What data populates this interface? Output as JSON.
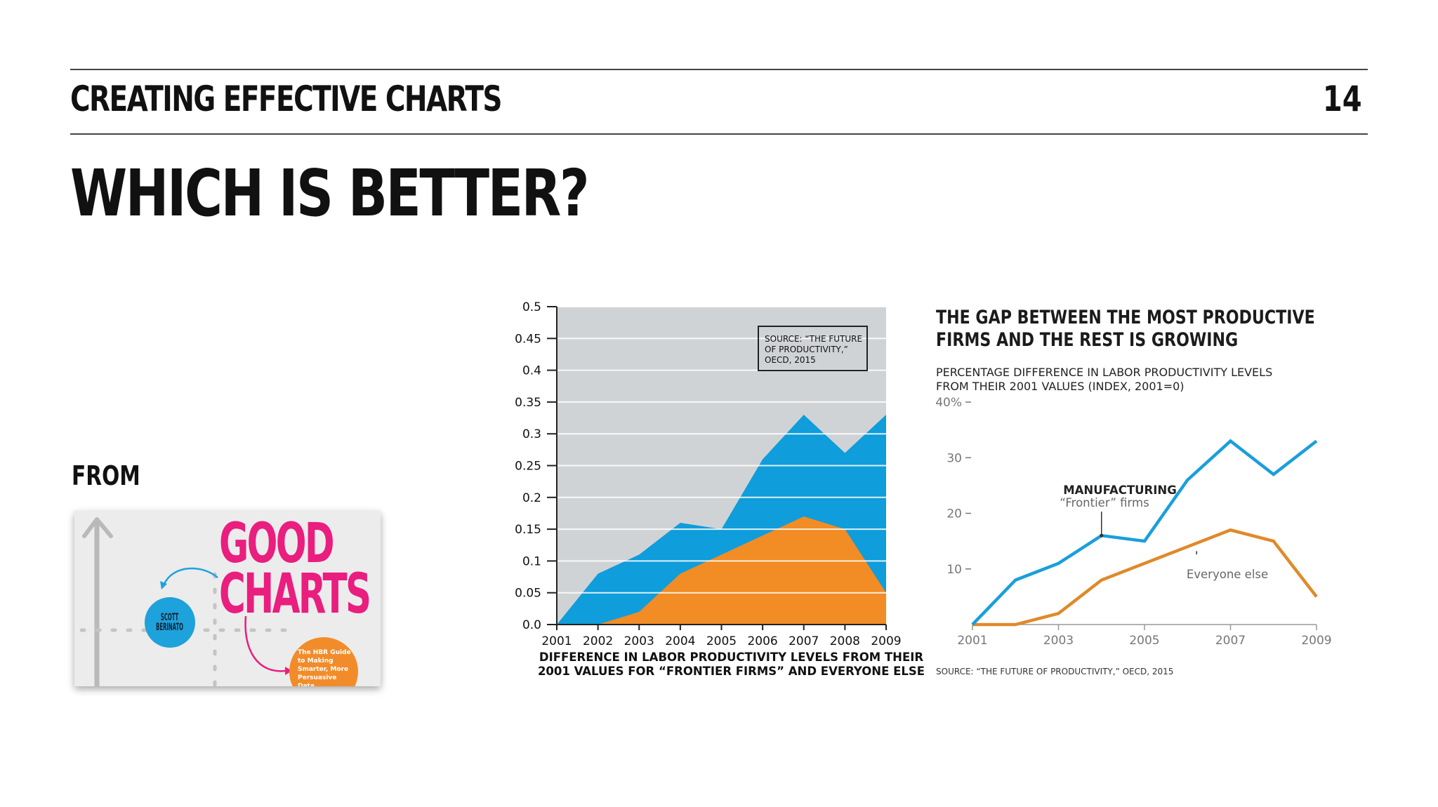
{
  "header": {
    "title": "CREATING EFFECTIVE CHARTS",
    "page_number": "14"
  },
  "main": {
    "title": "WHICH IS BETTER?"
  },
  "from_label": "FROM",
  "book": {
    "title_line1": "GOOD",
    "title_line2": "CHARTS",
    "author_line1": "SCOTT",
    "author_line2": "BERINATO",
    "subtitle": "The HBR Guide to Making Smarter, More Persuasive Data Visualizations",
    "colors": {
      "title": "#e91e7e",
      "author": "#1ea2dc",
      "subtitle": "#f28c2a"
    }
  },
  "chart_data": [
    {
      "type": "area",
      "x": [
        2001,
        2002,
        2003,
        2004,
        2005,
        2006,
        2007,
        2008,
        2009
      ],
      "series": [
        {
          "values": [
            0,
            0.08,
            0.11,
            0.16,
            0.15,
            0.26,
            0.33,
            0.27,
            0.33
          ],
          "color": "#0f9ddb"
        },
        {
          "values": [
            0,
            0,
            0.02,
            0.08,
            0.11,
            0.14,
            0.17,
            0.15,
            0.05
          ],
          "color": "#f28c24"
        }
      ],
      "ylim": [
        0,
        0.5
      ],
      "yticks": [
        "0.0",
        "0.05",
        "0.1",
        "0.15",
        "0.2",
        "0.25",
        "0.3",
        "0.35",
        "0.4",
        "0.45",
        "0.5"
      ],
      "xticks": [
        "2001",
        "2002",
        "2003",
        "2004",
        "2005",
        "2006",
        "2007",
        "2008",
        "2009"
      ],
      "xlabel_line1": "DIFFERENCE IN LABOR PRODUCTIVITY LEVELS FROM THEIR",
      "xlabel_line2": "2001 VALUES FOR “FRONTIER FIRMS” AND EVERYONE ELSE",
      "source_line1": "SOURCE: “THE FUTURE",
      "source_line2": "OF PRODUCTIVITY,”",
      "source_line3": "OECD, 2015",
      "background": "#d0d3d6",
      "grid": true
    },
    {
      "type": "line",
      "title_line1": "THE GAP BETWEEN THE MOST PRODUCTIVE",
      "title_line2": "FIRMS AND THE REST IS GROWING",
      "subtitle_line1": "PERCENTAGE DIFFERENCE IN LABOR PRODUCTIVITY LEVELS",
      "subtitle_line2": "FROM THEIR 2001 VALUES (INDEX, 2001=0)",
      "x": [
        2001,
        2002,
        2003,
        2004,
        2005,
        2006,
        2007,
        2008,
        2009
      ],
      "series": [
        {
          "name": "“Frontier” firms",
          "values": [
            0,
            8,
            11,
            16,
            15,
            26,
            33,
            27,
            33
          ],
          "color": "#1a9fdb"
        },
        {
          "name": "Everyone else",
          "values": [
            0,
            0,
            2,
            8,
            11,
            14,
            17,
            15,
            5
          ],
          "color": "#e08a2a"
        }
      ],
      "ylim": [
        0,
        40
      ],
      "yticks": [
        "40%",
        "30",
        "20",
        "10"
      ],
      "xticks": [
        "2001",
        "2003",
        "2005",
        "2007",
        "2009"
      ],
      "annotation_group": "MANUFACTURING",
      "source": "SOURCE: “THE FUTURE OF PRODUCTIVITY,” OECD, 2015",
      "grid": false
    }
  ]
}
